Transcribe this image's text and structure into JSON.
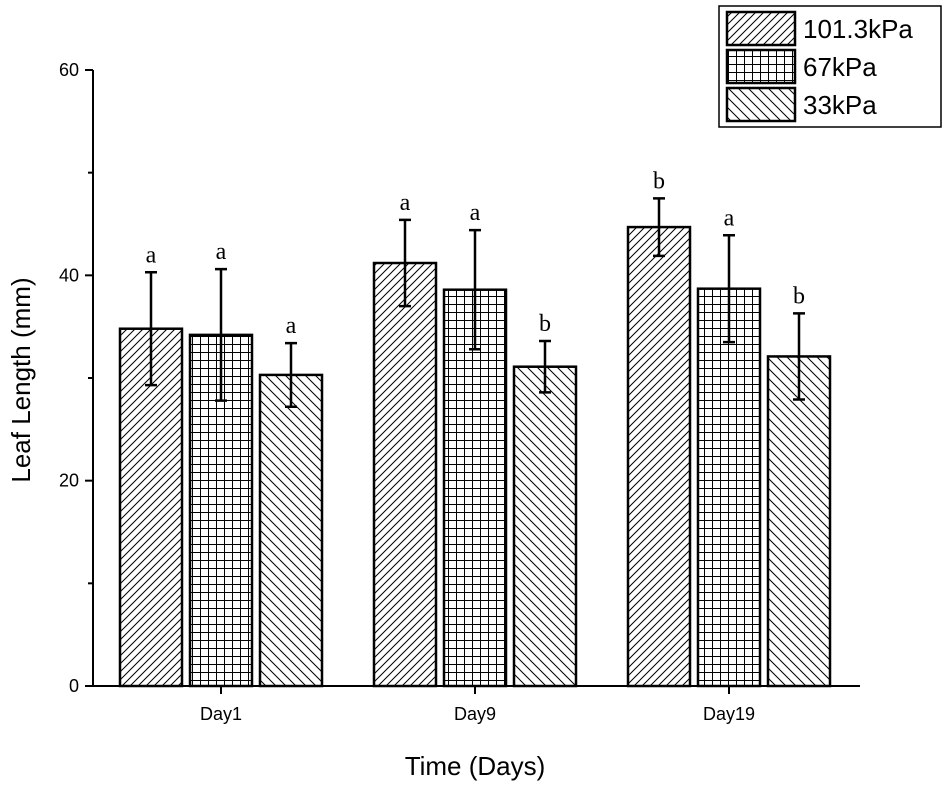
{
  "chart_data": {
    "type": "bar",
    "title": "",
    "xlabel": "Time (Days)",
    "ylabel": "Leaf Length (mm)",
    "ylim": [
      0,
      60
    ],
    "yticks": [
      0,
      20,
      40,
      60
    ],
    "categories": [
      "Day1",
      "Day9",
      "Day19"
    ],
    "series": [
      {
        "name": "101.3kPa",
        "pattern": "diag-right",
        "values": [
          34.8,
          41.2,
          44.7
        ],
        "errors": [
          5.5,
          4.2,
          2.8
        ],
        "sig": [
          "a",
          "a",
          "b"
        ]
      },
      {
        "name": "67kPa",
        "pattern": "grid",
        "values": [
          34.2,
          38.6,
          38.7
        ],
        "errors": [
          6.4,
          5.8,
          5.2
        ],
        "sig": [
          "a",
          "a",
          "a"
        ]
      },
      {
        "name": "33kPa",
        "pattern": "diag-left",
        "values": [
          30.3,
          31.1,
          32.1
        ],
        "errors": [
          3.1,
          2.5,
          4.2
        ],
        "sig": [
          "a",
          "b",
          "b"
        ]
      }
    ],
    "legend": "top-right",
    "grid": false
  }
}
